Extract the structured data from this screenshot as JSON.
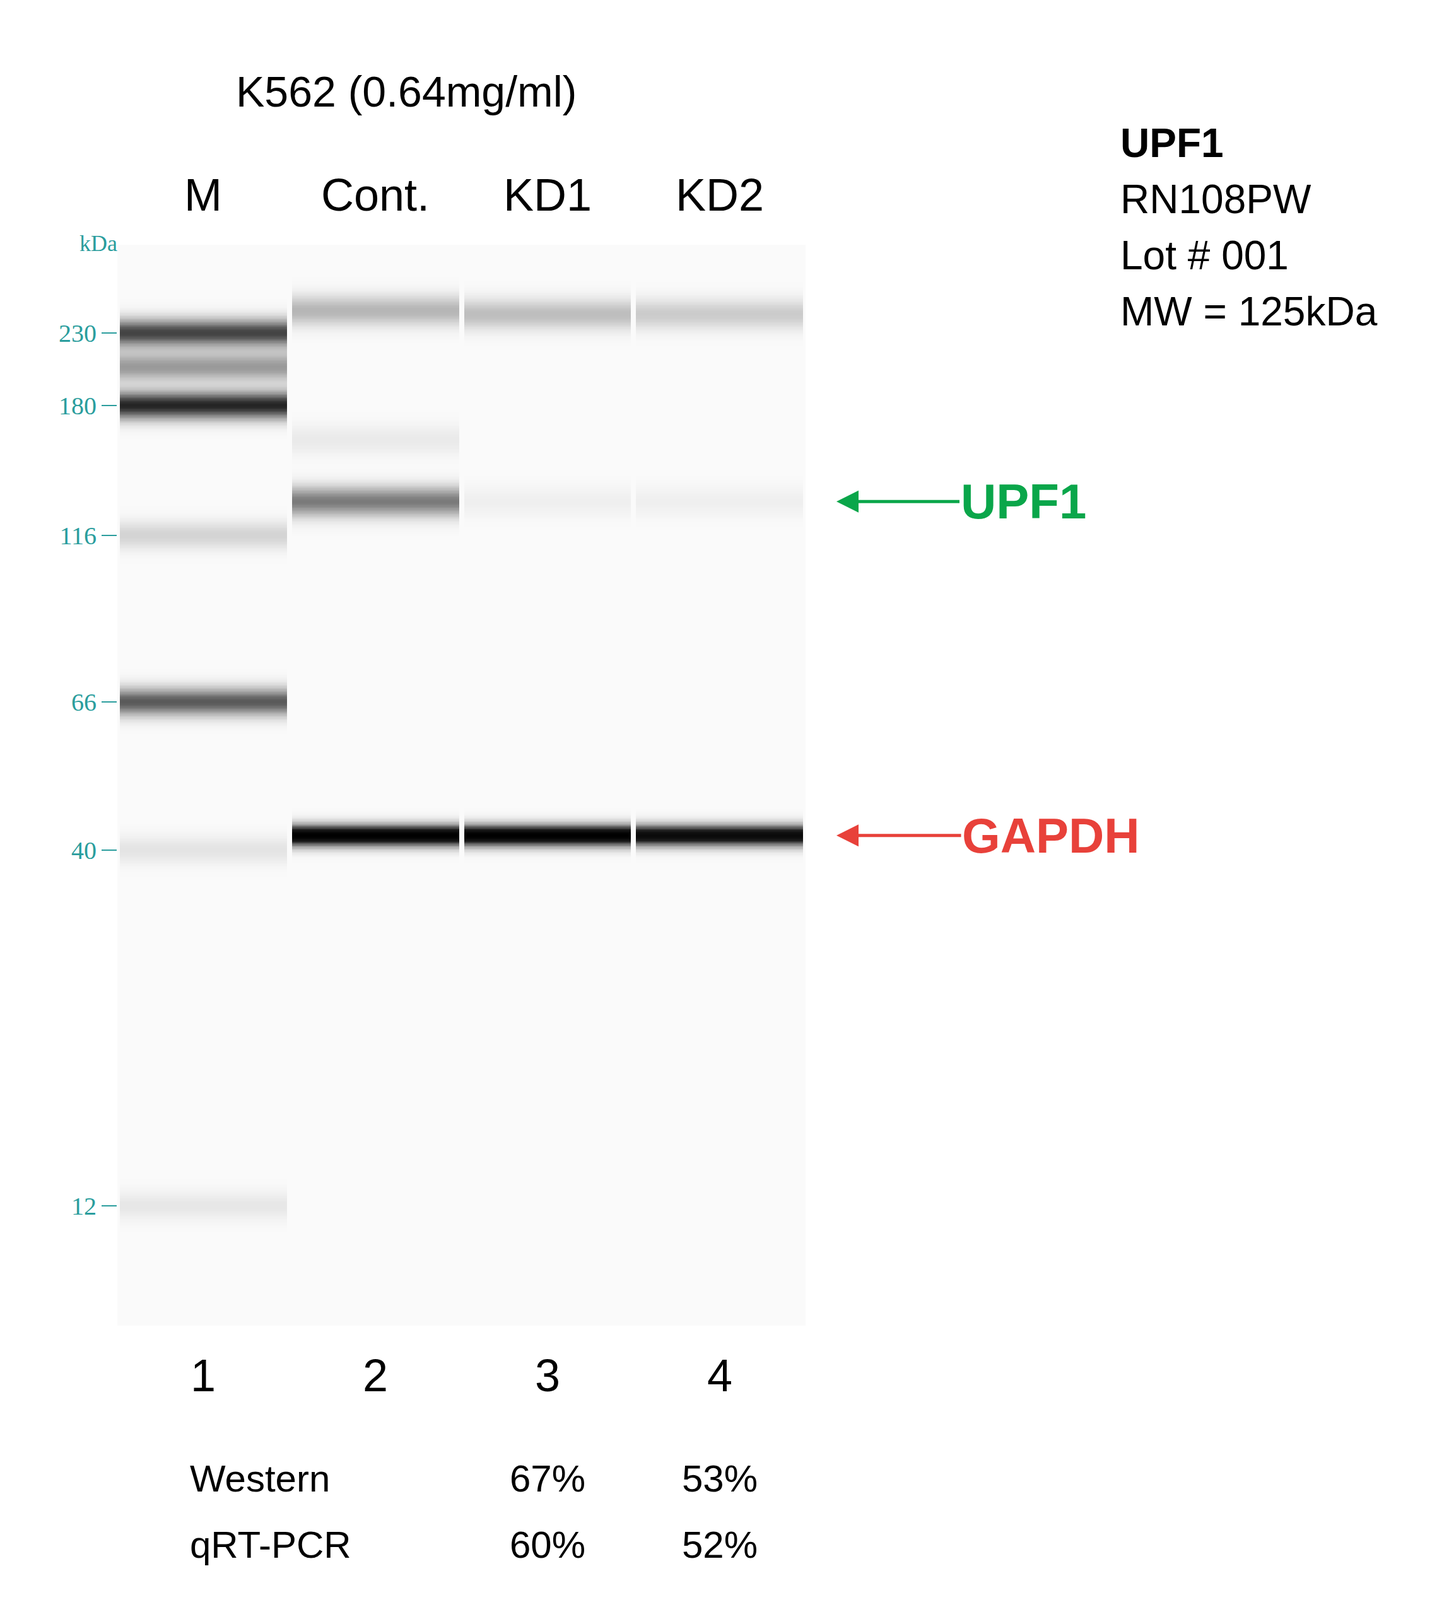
{
  "chart_data": {
    "type": "gel",
    "title": "K562 (0.64mg/ml)",
    "y_label": "kDa",
    "log": "y",
    "ylim": [
      8,
      310
    ],
    "yticks": [
      12,
      40,
      66,
      116,
      180,
      230
    ],
    "lanes": [
      {
        "name": "M",
        "number": "1",
        "bands": [
          {
            "mw": 230,
            "intensity": 0.62
          },
          {
            "mw": 205,
            "intensity": 0.35
          },
          {
            "mw": 180,
            "intensity": 0.72
          },
          {
            "mw": 116,
            "intensity": 0.14
          },
          {
            "mw": 66,
            "intensity": 0.55
          },
          {
            "mw": 40,
            "intensity": 0.08
          },
          {
            "mw": 12,
            "intensity": 0.07
          }
        ]
      },
      {
        "name": "Cont.",
        "number": "2",
        "bands": [
          {
            "mw": 248,
            "intensity": 0.25
          },
          {
            "mw": 160,
            "intensity": 0.06
          },
          {
            "mw": 130,
            "intensity": 0.45
          },
          {
            "mw": 42,
            "intensity": 1.0
          }
        ]
      },
      {
        "name": "KD1",
        "number": "3",
        "bands": [
          {
            "mw": 245,
            "intensity": 0.22
          },
          {
            "mw": 130,
            "intensity": 0.04
          },
          {
            "mw": 42,
            "intensity": 1.0
          }
        ]
      },
      {
        "name": "KD2",
        "number": "4",
        "bands": [
          {
            "mw": 245,
            "intensity": 0.17
          },
          {
            "mw": 130,
            "intensity": 0.04
          },
          {
            "mw": 42,
            "intensity": 0.9
          }
        ]
      }
    ],
    "band_labels": [
      {
        "text": "UPF1",
        "mw": 130,
        "color": "#0aa64a"
      },
      {
        "text": "GAPDH",
        "mw": 42,
        "color": "#e8413a"
      }
    ]
  },
  "info": [
    "UPF1",
    "RN108PW",
    "Lot # 001",
    "MW = 125kDa"
  ],
  "quantification": [
    {
      "label": "Western",
      "values": [
        null,
        null,
        "67%",
        "53%"
      ]
    },
    {
      "label": "qRT-PCR",
      "values": [
        null,
        null,
        "60%",
        "52%"
      ]
    }
  ]
}
